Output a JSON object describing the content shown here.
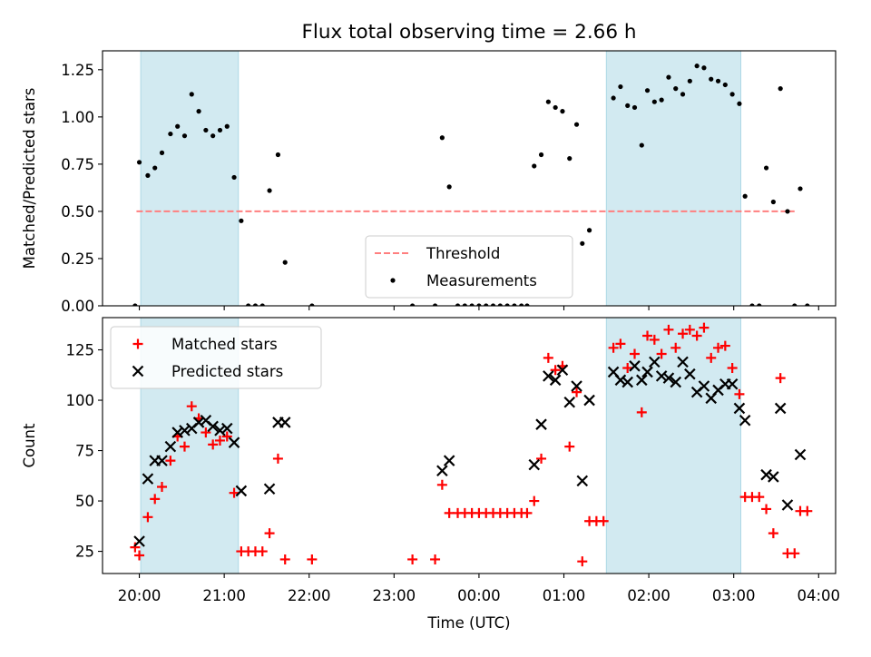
{
  "chart_data": [
    {
      "type": "scatter",
      "title": "Flux total observing time = 2.66 h",
      "ylabel": "Matched/Predicted stars",
      "ylim": [
        0,
        1.35
      ],
      "y_ticks": [
        "0.00",
        "0.25",
        "0.50",
        "0.75",
        "1.00",
        "1.25"
      ],
      "threshold": {
        "name": "Threshold",
        "value": 0.5,
        "color": "#ff7f7f",
        "x_range": [
          "19:58",
          "03:43"
        ]
      },
      "legend_position": "bottom-center",
      "series": [
        {
          "name": "Measurements",
          "color": "#000000",
          "points": [
            [
              "19:57",
              0.0
            ],
            [
              "20:00",
              0.76
            ],
            [
              "20:06",
              0.69
            ],
            [
              "20:11",
              0.73
            ],
            [
              "20:16",
              0.81
            ],
            [
              "20:22",
              0.91
            ],
            [
              "20:27",
              0.95
            ],
            [
              "20:32",
              0.9
            ],
            [
              "20:37",
              1.12
            ],
            [
              "20:42",
              1.03
            ],
            [
              "20:47",
              0.93
            ],
            [
              "20:52",
              0.9
            ],
            [
              "20:57",
              0.93
            ],
            [
              "21:02",
              0.95
            ],
            [
              "21:07",
              0.68
            ],
            [
              "21:12",
              0.45
            ],
            [
              "21:17",
              0.0
            ],
            [
              "21:22",
              0.0
            ],
            [
              "21:27",
              0.0
            ],
            [
              "21:32",
              0.61
            ],
            [
              "21:38",
              0.8
            ],
            [
              "21:43",
              0.23
            ],
            [
              "22:02",
              0.0
            ],
            [
              "23:13",
              0.0
            ],
            [
              "23:29",
              0.0
            ],
            [
              "23:34",
              0.89
            ],
            [
              "23:39",
              0.63
            ],
            [
              "23:45",
              0.0
            ],
            [
              "23:50",
              0.0
            ],
            [
              "23:55",
              0.0
            ],
            [
              "00:00",
              0.0
            ],
            [
              "00:05",
              0.0
            ],
            [
              "00:10",
              0.0
            ],
            [
              "00:15",
              0.0
            ],
            [
              "00:20",
              0.0
            ],
            [
              "00:25",
              0.0
            ],
            [
              "00:30",
              0.0
            ],
            [
              "00:34",
              0.0
            ],
            [
              "00:39",
              0.74
            ],
            [
              "00:44",
              0.8
            ],
            [
              "00:49",
              1.08
            ],
            [
              "00:54",
              1.05
            ],
            [
              "00:59",
              1.03
            ],
            [
              "01:04",
              0.78
            ],
            [
              "01:09",
              0.96
            ],
            [
              "01:13",
              0.33
            ],
            [
              "01:18",
              0.4
            ],
            [
              "01:35",
              1.1
            ],
            [
              "01:40",
              1.16
            ],
            [
              "01:45",
              1.06
            ],
            [
              "01:50",
              1.05
            ],
            [
              "01:55",
              0.85
            ],
            [
              "01:59",
              1.14
            ],
            [
              "02:04",
              1.08
            ],
            [
              "02:09",
              1.09
            ],
            [
              "02:14",
              1.21
            ],
            [
              "02:19",
              1.15
            ],
            [
              "02:24",
              1.12
            ],
            [
              "02:29",
              1.19
            ],
            [
              "02:34",
              1.27
            ],
            [
              "02:39",
              1.26
            ],
            [
              "02:44",
              1.2
            ],
            [
              "02:49",
              1.19
            ],
            [
              "02:54",
              1.17
            ],
            [
              "02:59",
              1.12
            ],
            [
              "03:04",
              1.07
            ],
            [
              "03:08",
              0.58
            ],
            [
              "03:13",
              0.0
            ],
            [
              "03:18",
              0.0
            ],
            [
              "03:23",
              0.73
            ],
            [
              "03:28",
              0.55
            ],
            [
              "03:33",
              1.15
            ],
            [
              "03:38",
              0.5
            ],
            [
              "03:43",
              0.0
            ],
            [
              "03:47",
              0.62
            ],
            [
              "03:52",
              0.0
            ]
          ]
        }
      ]
    },
    {
      "type": "scatter",
      "xlabel": "Time (UTC)",
      "ylabel": "Count",
      "ylim": [
        14,
        141
      ],
      "y_ticks": [
        "25",
        "50",
        "75",
        "100",
        "125"
      ],
      "legend_position": "top-left",
      "series": [
        {
          "name": "Matched stars",
          "color": "#ff0000",
          "marker": "+",
          "points": [
            [
              "19:57",
              27
            ],
            [
              "20:00",
              23
            ],
            [
              "20:06",
              42
            ],
            [
              "20:11",
              51
            ],
            [
              "20:16",
              57
            ],
            [
              "20:22",
              70
            ],
            [
              "20:27",
              82
            ],
            [
              "20:32",
              77
            ],
            [
              "20:37",
              97
            ],
            [
              "20:42",
              91
            ],
            [
              "20:47",
              84
            ],
            [
              "20:52",
              78
            ],
            [
              "20:57",
              80
            ],
            [
              "21:02",
              82
            ],
            [
              "21:07",
              54
            ],
            [
              "21:12",
              25
            ],
            [
              "21:17",
              25
            ],
            [
              "21:22",
              25
            ],
            [
              "21:27",
              25
            ],
            [
              "21:32",
              34
            ],
            [
              "21:38",
              71
            ],
            [
              "21:43",
              21
            ],
            [
              "22:02",
              21
            ],
            [
              "23:13",
              21
            ],
            [
              "23:29",
              21
            ],
            [
              "23:34",
              58
            ],
            [
              "23:39",
              44
            ],
            [
              "23:45",
              44
            ],
            [
              "23:50",
              44
            ],
            [
              "23:55",
              44
            ],
            [
              "00:00",
              44
            ],
            [
              "00:05",
              44
            ],
            [
              "00:10",
              44
            ],
            [
              "00:15",
              44
            ],
            [
              "00:20",
              44
            ],
            [
              "00:25",
              44
            ],
            [
              "00:30",
              44
            ],
            [
              "00:34",
              44
            ],
            [
              "00:39",
              50
            ],
            [
              "00:44",
              71
            ],
            [
              "00:49",
              121
            ],
            [
              "00:54",
              115
            ],
            [
              "00:59",
              117
            ],
            [
              "01:04",
              77
            ],
            [
              "01:09",
              104
            ],
            [
              "01:13",
              20
            ],
            [
              "01:18",
              40
            ],
            [
              "01:23",
              40
            ],
            [
              "01:28",
              40
            ],
            [
              "01:35",
              126
            ],
            [
              "01:40",
              128
            ],
            [
              "01:45",
              116
            ],
            [
              "01:50",
              123
            ],
            [
              "01:55",
              94
            ],
            [
              "01:59",
              132
            ],
            [
              "02:04",
              130
            ],
            [
              "02:09",
              123
            ],
            [
              "02:14",
              135
            ],
            [
              "02:19",
              126
            ],
            [
              "02:24",
              133
            ],
            [
              "02:29",
              135
            ],
            [
              "02:34",
              132
            ],
            [
              "02:39",
              136
            ],
            [
              "02:44",
              121
            ],
            [
              "02:49",
              126
            ],
            [
              "02:54",
              127
            ],
            [
              "02:59",
              116
            ],
            [
              "03:04",
              103
            ],
            [
              "03:08",
              52
            ],
            [
              "03:13",
              52
            ],
            [
              "03:18",
              52
            ],
            [
              "03:23",
              46
            ],
            [
              "03:28",
              34
            ],
            [
              "03:33",
              111
            ],
            [
              "03:38",
              24
            ],
            [
              "03:43",
              24
            ],
            [
              "03:47",
              45
            ],
            [
              "03:52",
              45
            ]
          ]
        },
        {
          "name": "Predicted stars",
          "color": "#000000",
          "marker": "x",
          "points": [
            [
              "20:00",
              30
            ],
            [
              "20:06",
              61
            ],
            [
              "20:11",
              70
            ],
            [
              "20:16",
              70
            ],
            [
              "20:22",
              77
            ],
            [
              "20:27",
              84
            ],
            [
              "20:32",
              85
            ],
            [
              "20:37",
              86
            ],
            [
              "20:42",
              89
            ],
            [
              "20:47",
              90
            ],
            [
              "20:52",
              87
            ],
            [
              "20:57",
              85
            ],
            [
              "21:02",
              86
            ],
            [
              "21:07",
              79
            ],
            [
              "21:12",
              55
            ],
            [
              "21:32",
              56
            ],
            [
              "21:38",
              89
            ],
            [
              "21:43",
              89
            ],
            [
              "23:34",
              65
            ],
            [
              "23:39",
              70
            ],
            [
              "00:39",
              68
            ],
            [
              "00:44",
              88
            ],
            [
              "00:49",
              112
            ],
            [
              "00:54",
              110
            ],
            [
              "00:59",
              115
            ],
            [
              "01:04",
              99
            ],
            [
              "01:09",
              107
            ],
            [
              "01:13",
              60
            ],
            [
              "01:18",
              100
            ],
            [
              "01:35",
              114
            ],
            [
              "01:40",
              110
            ],
            [
              "01:45",
              109
            ],
            [
              "01:50",
              117
            ],
            [
              "01:55",
              110
            ],
            [
              "01:59",
              114
            ],
            [
              "02:04",
              119
            ],
            [
              "02:09",
              112
            ],
            [
              "02:14",
              111
            ],
            [
              "02:19",
              109
            ],
            [
              "02:24",
              119
            ],
            [
              "02:29",
              113
            ],
            [
              "02:34",
              104
            ],
            [
              "02:39",
              107
            ],
            [
              "02:44",
              101
            ],
            [
              "02:49",
              105
            ],
            [
              "02:54",
              108
            ],
            [
              "02:59",
              108
            ],
            [
              "03:04",
              96
            ],
            [
              "03:08",
              90
            ],
            [
              "03:23",
              63
            ],
            [
              "03:28",
              62
            ],
            [
              "03:33",
              96
            ],
            [
              "03:38",
              48
            ],
            [
              "03:47",
              73
            ]
          ]
        }
      ]
    }
  ],
  "shared_x": {
    "range": [
      "19:34",
      "04:12"
    ],
    "ticks": [
      "20:00",
      "21:00",
      "22:00",
      "23:00",
      "00:00",
      "01:00",
      "02:00",
      "03:00",
      "04:00"
    ]
  },
  "shaded_intervals": [
    {
      "start": "20:01",
      "end": "21:10"
    },
    {
      "start": "01:30",
      "end": "03:05"
    }
  ],
  "shade_color": "#add8e6"
}
